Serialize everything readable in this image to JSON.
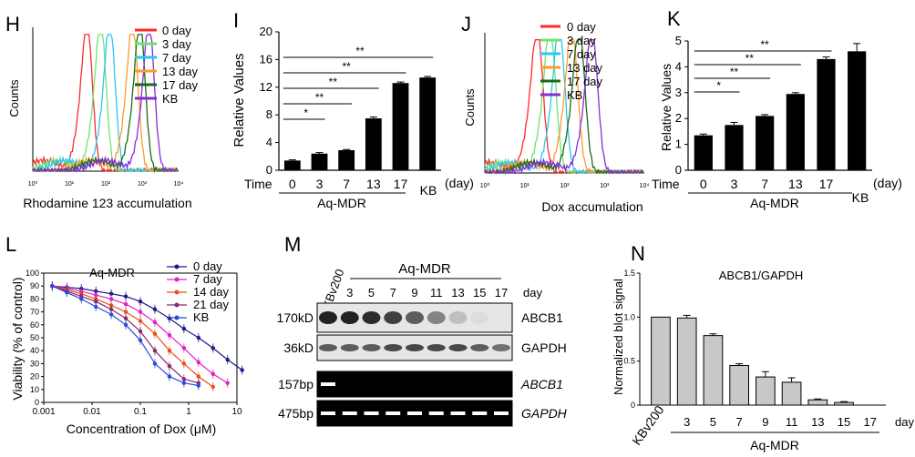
{
  "panels": {
    "H": "H",
    "I": "I",
    "J": "J",
    "K": "K",
    "L": "L",
    "M": "M",
    "N": "N"
  },
  "colors": {
    "c0": "#ff2a2a",
    "c3": "#6fe36f",
    "c7": "#28c8f0",
    "c13": "#ff9a2a",
    "c17": "#1a6a1a",
    "kb": "#8a2bd8"
  },
  "legend_days": [
    "0 day",
    "3 day",
    "7 day",
    "13 day",
    "17 day",
    "KB"
  ],
  "panel_h": {
    "ylabel": "Counts",
    "xlabel": "Rhodamine 123 accumulation",
    "ticks": [
      "10⁰",
      "10¹",
      "10²",
      "10³",
      "10⁴"
    ]
  },
  "panel_j": {
    "ylabel": "Counts",
    "xlabel": "Dox accumulation",
    "ticks": [
      "10⁰",
      "10¹",
      "10²",
      "10³",
      "10⁴"
    ]
  },
  "chart_data": [
    {
      "id": "I",
      "type": "bar",
      "ylabel": "Relative Values",
      "categories": [
        "0",
        "3",
        "7",
        "13",
        "17",
        "KB"
      ],
      "values": [
        1.4,
        2.4,
        2.9,
        7.5,
        12.6,
        13.4
      ],
      "errors": [
        0.1,
        0.15,
        0.1,
        0.2,
        0.15,
        0.15
      ],
      "ylim": [
        0,
        20
      ],
      "yticks": [
        "0",
        "4",
        "8",
        "12",
        "16",
        "20"
      ],
      "time_label": "Time",
      "group_label": "Aq-MDR",
      "unit": "(day)",
      "sig": [
        "*",
        "**",
        "**",
        "**",
        "**"
      ]
    },
    {
      "id": "K",
      "type": "bar",
      "ylabel": "Relative Values",
      "categories": [
        "0",
        "3",
        "7",
        "13",
        "17",
        "KB"
      ],
      "values": [
        1.35,
        1.75,
        2.1,
        2.95,
        4.3,
        4.6
      ],
      "errors": [
        0.05,
        0.1,
        0.05,
        0.05,
        0.08,
        0.3
      ],
      "ylim": [
        0,
        5
      ],
      "yticks": [
        "0",
        "1",
        "2",
        "3",
        "4",
        "5"
      ],
      "time_label": "Time",
      "group_label": "Aq-MDR",
      "unit": "(day)",
      "sig": [
        "*",
        "**",
        "**",
        "**"
      ]
    },
    {
      "id": "L",
      "type": "line",
      "title": "Aq-MDR",
      "xlabel": "Concentration of Dox (μM)",
      "ylabel": "Viability (% of control)",
      "xticks": [
        "0.001",
        "0.01",
        "0.1",
        "1",
        "10"
      ],
      "yticks": [
        "0",
        "10",
        "20",
        "30",
        "40",
        "50",
        "60",
        "70",
        "80",
        "90",
        "100"
      ],
      "x": [
        0.0015,
        0.003,
        0.006,
        0.012,
        0.025,
        0.05,
        0.1,
        0.2,
        0.4,
        0.8,
        1.6,
        3.2,
        6.4,
        12.8
      ],
      "series": [
        {
          "name": "0 day",
          "color": "#1a1a8c",
          "values": [
            90,
            89,
            88,
            86,
            84,
            82,
            78,
            72,
            65,
            57,
            50,
            42,
            33,
            25
          ]
        },
        {
          "name": "7 day",
          "color": "#e020c8",
          "values": [
            90,
            88,
            86,
            83,
            80,
            76,
            70,
            62,
            52,
            42,
            31,
            22,
            15,
            null
          ]
        },
        {
          "name": "14 day",
          "color": "#e85020",
          "values": [
            90,
            87,
            84,
            80,
            75,
            70,
            63,
            53,
            40,
            30,
            20,
            12,
            null,
            null
          ]
        },
        {
          "name": "21 day",
          "color": "#8a2a6a",
          "values": [
            90,
            86,
            82,
            78,
            72,
            65,
            55,
            40,
            28,
            18,
            15,
            null,
            null,
            null
          ]
        },
        {
          "name": "KB",
          "color": "#2a4ad8",
          "values": [
            90,
            85,
            80,
            74,
            68,
            60,
            48,
            30,
            20,
            15,
            13,
            null,
            null,
            null
          ]
        }
      ]
    },
    {
      "id": "N",
      "type": "bar",
      "title": "ABCB1/GAPDH",
      "ylabel": "Normalized blot signal",
      "categories": [
        "KBv200",
        "3",
        "5",
        "7",
        "9",
        "11",
        "13",
        "15",
        "17"
      ],
      "values": [
        1.0,
        0.99,
        0.79,
        0.45,
        0.32,
        0.26,
        0.06,
        0.03,
        0.0
      ],
      "errors": [
        0,
        0.03,
        0.02,
        0.02,
        0.06,
        0.05,
        0.01,
        0.01,
        0
      ],
      "ylim": [
        0,
        1.5
      ],
      "yticks": [
        "0",
        "0.5",
        "1.0",
        "1.5"
      ],
      "group_label": "Aq-MDR",
      "unit": "day"
    }
  ],
  "panel_m": {
    "group": "Aq-MDR",
    "kbv": "KBv200",
    "lanes": [
      "3",
      "5",
      "7",
      "9",
      "11",
      "13",
      "15",
      "17"
    ],
    "unit": "day",
    "rows": [
      {
        "left": "170kD",
        "right": "ABCB1",
        "intensity": [
          1,
          1,
          0.95,
          0.85,
          0.7,
          0.5,
          0.2,
          0.05,
          0
        ]
      },
      {
        "left": "36kD",
        "right": "GAPDH",
        "intensity": [
          0.7,
          0.7,
          0.7,
          0.8,
          0.8,
          0.8,
          0.8,
          0.7,
          0.6
        ]
      },
      {
        "left": "157bp",
        "right": "ABCB1",
        "intensity": [
          1,
          0,
          0,
          0,
          0,
          0,
          0,
          0,
          0
        ]
      },
      {
        "left": "475bp",
        "right": "GAPDH",
        "intensity": [
          1,
          1,
          1,
          1,
          1,
          1,
          1,
          1,
          1
        ]
      }
    ]
  }
}
